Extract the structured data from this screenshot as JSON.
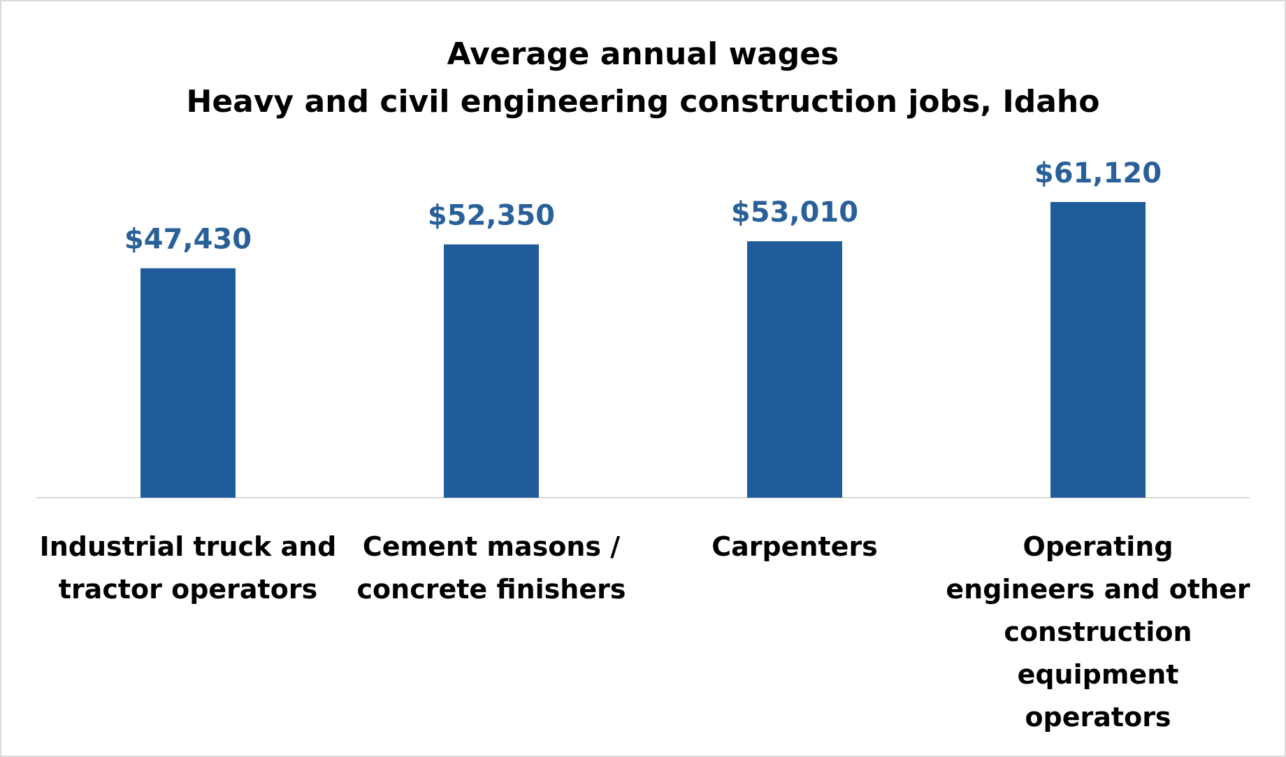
{
  "chart_data": {
    "type": "bar",
    "title": "Average annual wages",
    "subtitle": "Heavy and civil engineering construction jobs, Idaho",
    "categories": [
      [
        "Industrial truck and",
        "tractor operators"
      ],
      [
        "Cement masons /",
        "concrete finishers"
      ],
      [
        "Carpenters"
      ],
      [
        "Operating",
        "engineers and other",
        "construction",
        "equipment",
        "operators"
      ]
    ],
    "values": [
      47430,
      52350,
      53010,
      61120
    ],
    "data_labels": [
      "$47,430",
      "$52,350",
      "$53,010",
      "$61,120"
    ],
    "ylim": [
      0,
      70000
    ],
    "grid": false,
    "legend": "none",
    "bar_color": "#1F5C99",
    "label_color": "#2A6099"
  }
}
